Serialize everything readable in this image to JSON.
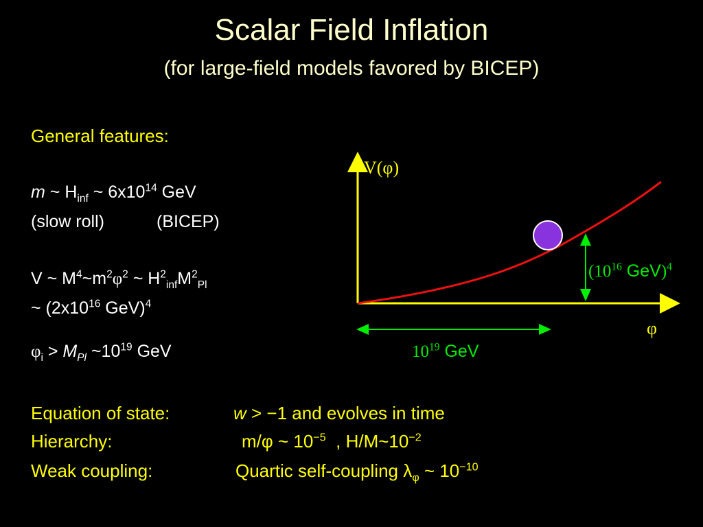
{
  "title": "Scalar Field Inflation",
  "subtitle": "(for large-field models favored by BICEP)",
  "features": {
    "heading": "General features:",
    "mass": [
      "m",
      " ~ H",
      "inf",
      " ~ 6x10",
      "14",
      " GeV"
    ],
    "slow_roll": "(slow roll)",
    "bicep": "(BICEP)",
    "potential": [
      "V ~ M",
      "4",
      "~m",
      "2",
      "φ",
      "2",
      " ~ H",
      "2",
      "inf",
      "M",
      "2",
      "Pl"
    ],
    "scale": [
      "~ (2x10",
      "16",
      " GeV)",
      "4"
    ],
    "field": [
      "φ",
      "i",
      " > ",
      "M",
      "Pl",
      " ~10",
      "19",
      " GeV"
    ]
  },
  "plot": {
    "y_label": "V(φ)",
    "x_label": "φ",
    "height_label": [
      "(10",
      "16",
      " GeV",
      ")",
      "4"
    ],
    "width_label": [
      "10",
      "19",
      " GeV"
    ]
  },
  "summary": [
    {
      "label": "Equation of state:",
      "text": [
        "w",
        " > ",
        "−1 and evolves in time"
      ]
    },
    {
      "label": "Hierarchy:",
      "text": [
        "m/φ ~ 10",
        "−5",
        "  , H/M~10",
        "−2"
      ]
    },
    {
      "label": "Weak coupling:",
      "text": [
        "Quartic self-coupling λ",
        "φ",
        " ~ 10",
        "−10"
      ]
    }
  ]
}
